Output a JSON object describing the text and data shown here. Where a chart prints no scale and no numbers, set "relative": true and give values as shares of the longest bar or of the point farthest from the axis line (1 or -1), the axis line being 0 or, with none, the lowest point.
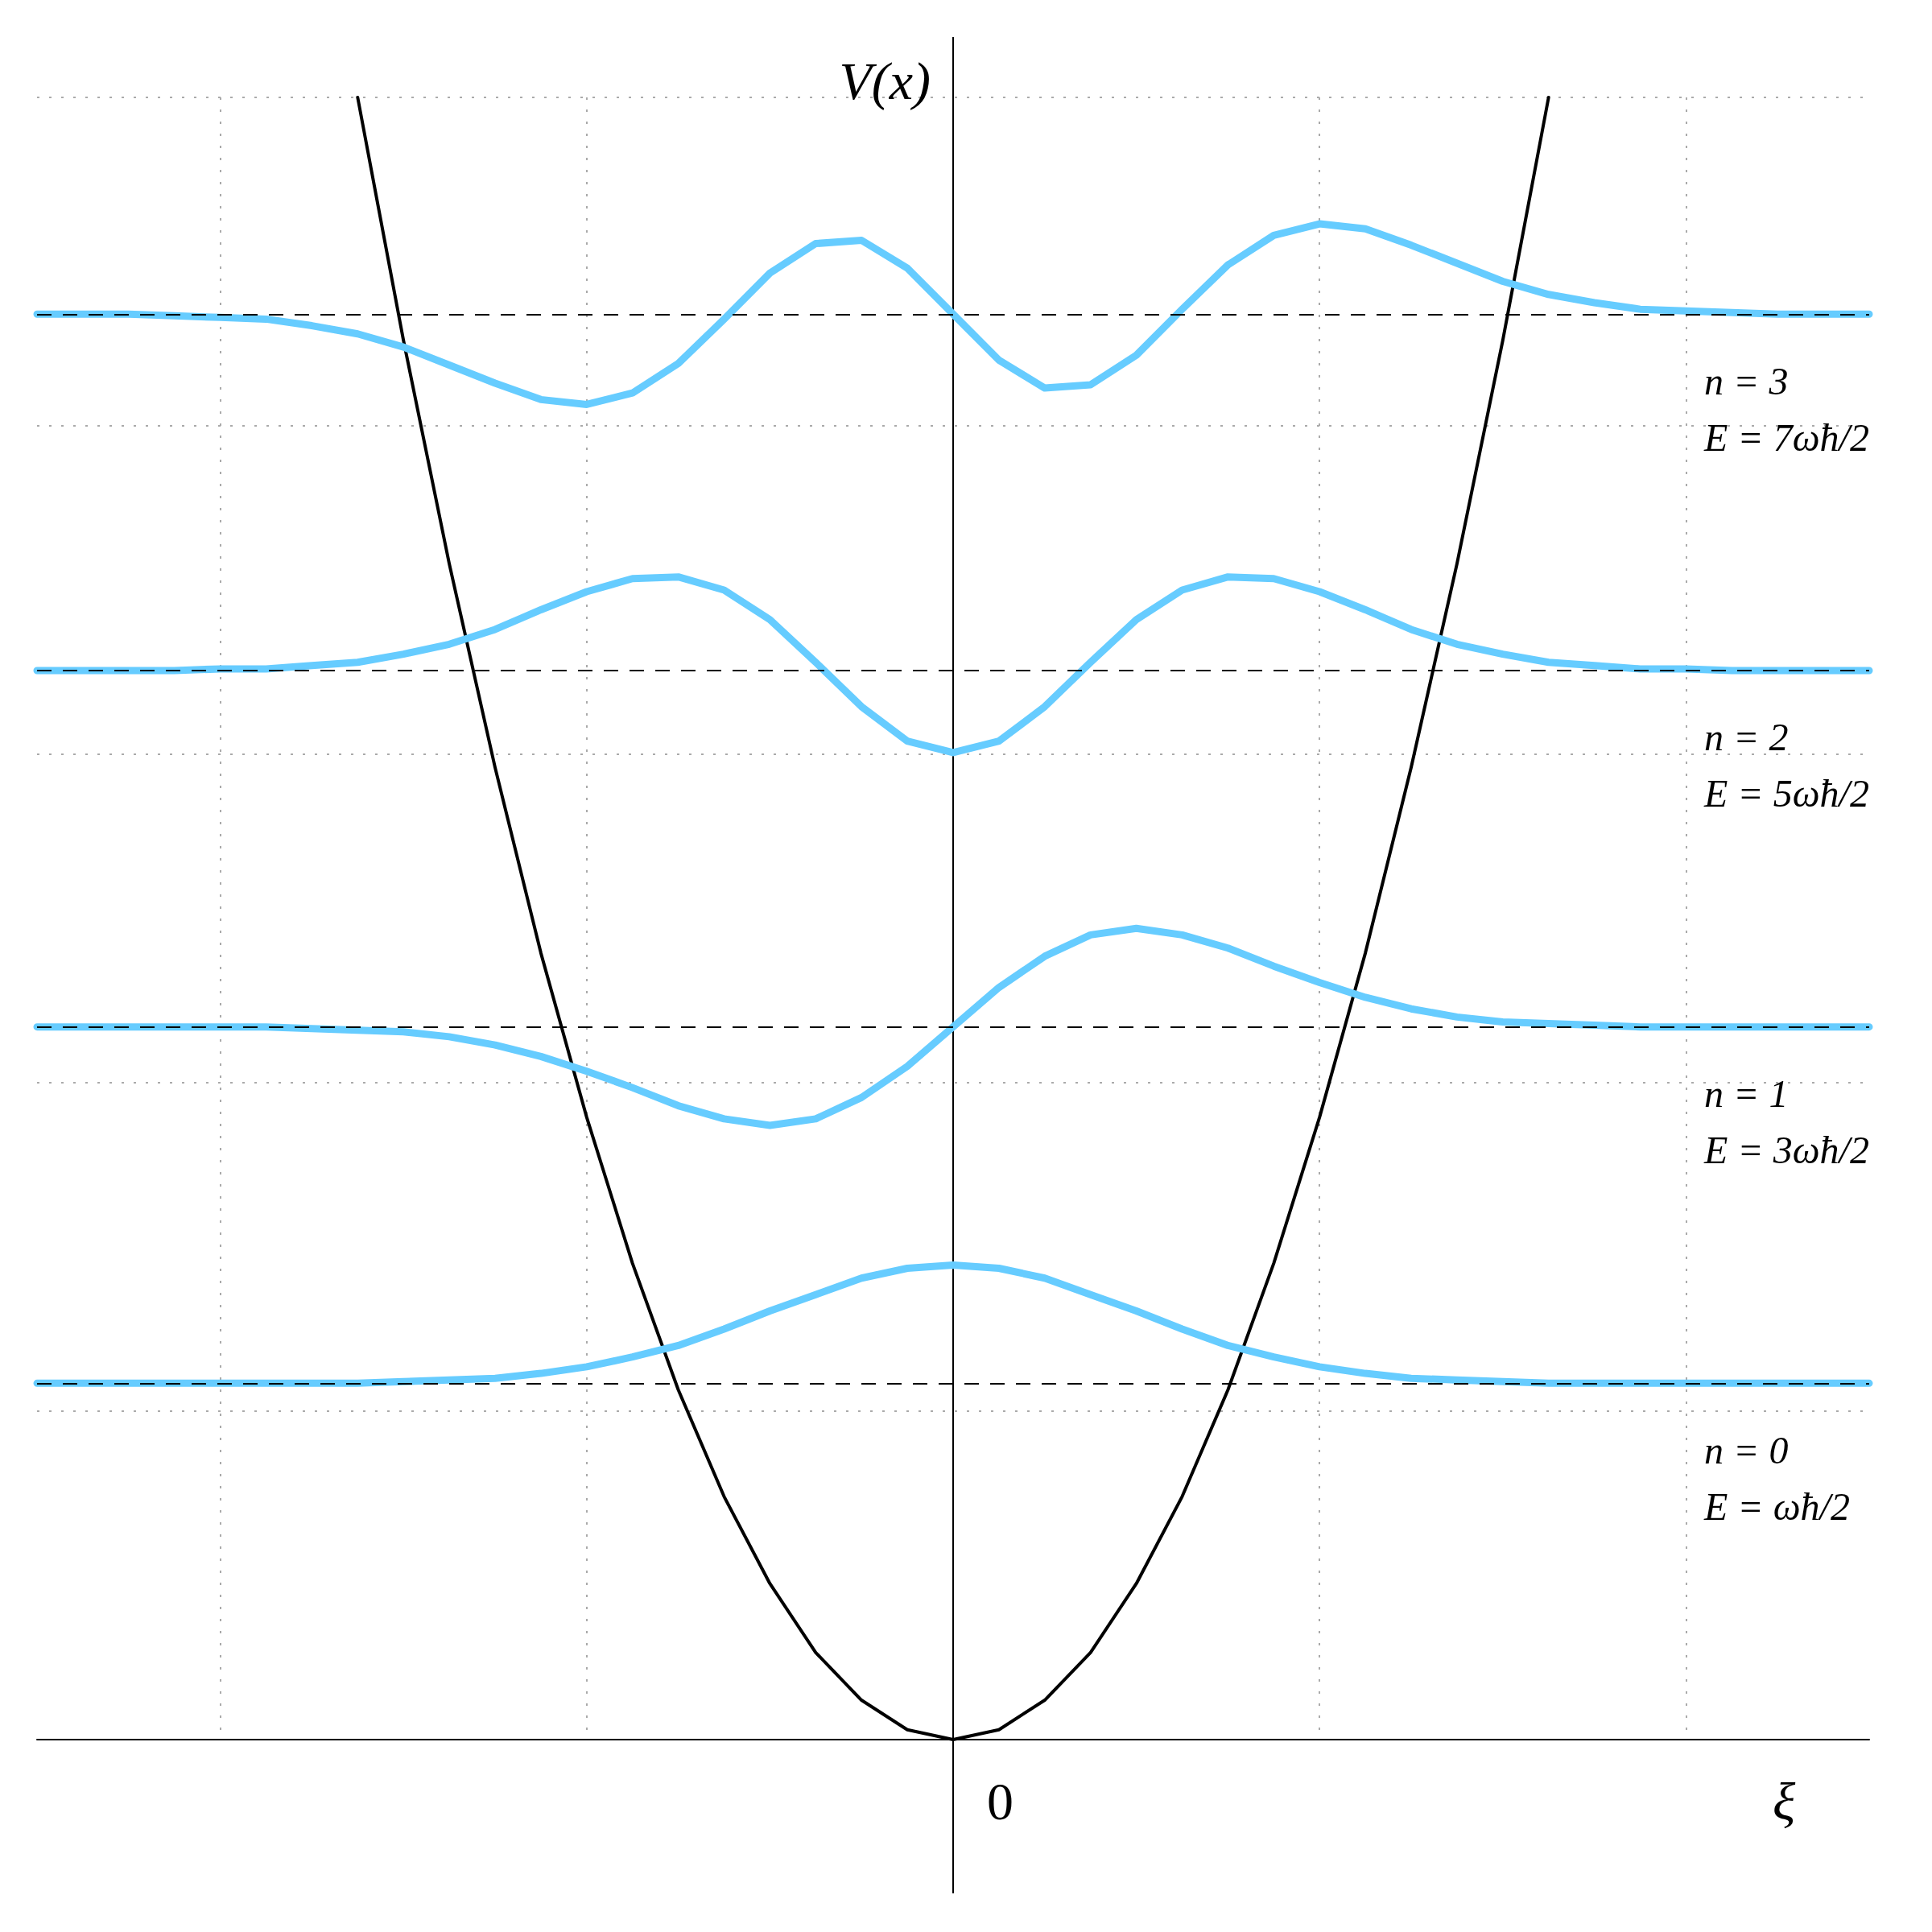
{
  "chart_data": {
    "type": "line",
    "relative": true,
    "xlabel": "ξ",
    "ylabel": "V(x)",
    "categories": [
      null,
      null,
      null,
      null,
      null,
      null,
      null,
      null,
      null,
      null,
      null,
      null,
      null,
      null,
      null,
      null,
      null,
      null,
      null,
      null,
      null,
      null,
      null,
      null,
      null,
      null,
      null,
      null,
      null,
      null,
      null,
      null,
      null,
      null,
      null,
      null,
      null,
      null,
      null,
      null,
      null
    ],
    "series": [
      {
        "color": "#66ccff",
        "values": [
          0.217,
          0.217,
          0.217,
          0.217,
          0.217,
          0.217,
          0.217,
          0.217,
          0.218,
          0.219,
          0.22,
          0.223,
          0.227,
          0.233,
          0.24,
          0.25,
          0.261,
          0.271,
          0.281,
          0.287,
          0.289,
          0.287,
          0.281,
          0.271,
          0.261,
          0.25,
          0.24,
          0.233,
          0.227,
          0.223,
          0.22,
          0.219,
          0.218,
          0.217,
          0.217,
          0.217,
          0.217,
          0.217,
          0.217,
          0.217,
          0.217
        ]
      },
      {
        "color": "#66ccff",
        "values": [
          0.434,
          0.434,
          0.434,
          0.434,
          0.434,
          0.434,
          0.433,
          0.432,
          0.431,
          0.428,
          0.423,
          0.416,
          0.407,
          0.397,
          0.386,
          0.378,
          0.374,
          0.378,
          0.391,
          0.41,
          0.434,
          0.458,
          0.477,
          0.49,
          0.494,
          0.49,
          0.482,
          0.471,
          0.461,
          0.452,
          0.445,
          0.44,
          0.437,
          0.436,
          0.435,
          0.434,
          0.434,
          0.434,
          0.434,
          0.434,
          0.434
        ]
      },
      {
        "color": "#66ccff",
        "values": [
          0.651,
          0.651,
          0.651,
          0.651,
          0.652,
          0.652,
          0.654,
          0.656,
          0.661,
          0.667,
          0.676,
          0.688,
          0.699,
          0.707,
          0.708,
          0.7,
          0.682,
          0.656,
          0.629,
          0.608,
          0.601,
          0.608,
          0.629,
          0.656,
          0.682,
          0.7,
          0.708,
          0.707,
          0.699,
          0.688,
          0.676,
          0.667,
          0.661,
          0.656,
          0.654,
          0.652,
          0.652,
          0.651,
          0.651,
          0.651,
          0.651
        ]
      },
      {
        "color": "#66ccff",
        "values": [
          0.868,
          0.868,
          0.868,
          0.867,
          0.866,
          0.865,
          0.861,
          0.856,
          0.848,
          0.837,
          0.826,
          0.816,
          0.813,
          0.82,
          0.838,
          0.865,
          0.893,
          0.911,
          0.913,
          0.896,
          0.868,
          0.84,
          0.823,
          0.825,
          0.843,
          0.871,
          0.898,
          0.916,
          0.923,
          0.92,
          0.91,
          0.899,
          0.888,
          0.88,
          0.875,
          0.871,
          0.87,
          0.869,
          0.868,
          0.868,
          0.868
        ]
      },
      {
        "color": "#000000",
        "values": [
          null,
          null,
          null,
          null,
          null,
          null,
          null,
          1.0,
          0.852,
          0.716,
          0.592,
          0.479,
          0.379,
          0.29,
          0.213,
          0.148,
          0.095,
          0.053,
          0.024,
          0.006,
          0,
          0.006,
          0.024,
          0.053,
          0.095,
          0.148,
          0.213,
          0.29,
          0.379,
          0.479,
          0.592,
          0.716,
          0.852,
          1.0,
          null,
          null,
          null,
          null,
          null,
          null,
          null
        ]
      }
    ],
    "ref_lines": [
      {
        "axis": "y",
        "value": 0.217,
        "color": "#000000",
        "line_style": "dashed"
      },
      {
        "axis": "y",
        "value": 0.434,
        "color": "#000000",
        "line_style": "dashed"
      },
      {
        "axis": "y",
        "value": 0.651,
        "color": "#000000",
        "line_style": "dashed"
      },
      {
        "axis": "y",
        "value": 0.868,
        "color": "#000000",
        "line_style": "dashed"
      }
    ],
    "annotations": [
      "0",
      "n = 0",
      "E = ωħ/2",
      "n = 1",
      "E = 3ωħ/2",
      "n = 2",
      "E = 5ωħ/2",
      "n = 3",
      "E = 7ωħ/2"
    ],
    "grid": true,
    "marker": "none",
    "line_style": "solid"
  }
}
